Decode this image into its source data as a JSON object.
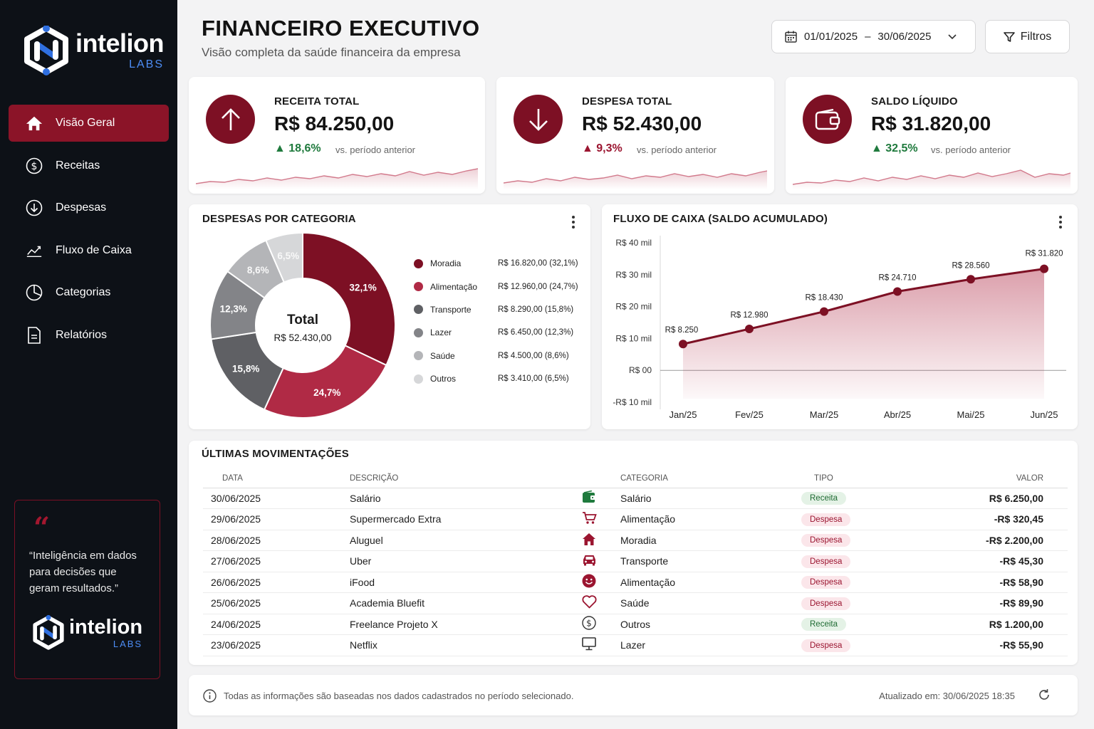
{
  "brand": {
    "name": "intelion",
    "sub": "LABS"
  },
  "sidebar": {
    "items": [
      {
        "label": "Visão Geral",
        "icon": "home-icon",
        "active": true
      },
      {
        "label": "Receitas",
        "icon": "dollar-circle-icon"
      },
      {
        "label": "Despesas",
        "icon": "arrow-down-circle-icon"
      },
      {
        "label": "Fluxo de Caixa",
        "icon": "trend-line-icon"
      },
      {
        "label": "Categorias",
        "icon": "pie-chart-icon"
      },
      {
        "label": "Relatórios",
        "icon": "document-icon"
      }
    ],
    "quote": "“Inteligência em dados para decisões que geram resultados.”"
  },
  "header": {
    "title": "FINANCEIRO EXECUTIVO",
    "subtitle": "Visão completa da saúde financeira da empresa",
    "date_start": "01/01/2025",
    "date_sep": "–",
    "date_end": "30/06/2025",
    "filter_label": "Filtros"
  },
  "kpis": [
    {
      "label": "RECEITA TOTAL",
      "value": "R$ 84.250,00",
      "delta": "▲ 18,6%",
      "trend": "up",
      "compare": "vs. período anterior",
      "icon": "arrow-up-icon"
    },
    {
      "label": "DESPESA TOTAL",
      "value": "R$ 52.430,00",
      "delta": "▲ 9,3%",
      "trend": "down",
      "compare": "vs. período anterior",
      "icon": "arrow-down-icon"
    },
    {
      "label": "SALDO LÍQUIDO",
      "value": "R$ 31.820,00",
      "delta": "▲ 32,5%",
      "trend": "up",
      "compare": "vs. período anterior",
      "icon": "wallet-icon"
    }
  ],
  "expenses": {
    "title": "DESPESAS POR CATEGORIA",
    "center_title": "Total",
    "center_value": "R$ 52.430,00"
  },
  "cashflow": {
    "title": "FLUXO DE CAIXA (SALDO ACUMULADO)"
  },
  "chart_data": [
    {
      "type": "pie",
      "title": "DESPESAS POR CATEGORIA",
      "categories": [
        "Moradia",
        "Alimentação",
        "Transporte",
        "Lazer",
        "Saúde",
        "Outros"
      ],
      "values": [
        16820,
        12960,
        8290,
        6450,
        4500,
        3410
      ],
      "percent_labels": [
        "32,1%",
        "24,7%",
        "15,8%",
        "12,3%",
        "8,6%",
        "6,5%"
      ],
      "legend_values": [
        "R$ 16.820,00 (32,1%)",
        "R$ 12.960,00 (24,7%)",
        "R$ 8.290,00 (15,8%)",
        "R$ 6.450,00 (12,3%)",
        "R$ 4.500,00 (8,6%)",
        "R$ 3.410,00 (6,5%)"
      ],
      "colors": [
        "#7d1024",
        "#b02a45",
        "#5f6064",
        "#838488",
        "#b4b5b8",
        "#d6d7d9"
      ],
      "legend": "right"
    },
    {
      "type": "area",
      "title": "FLUXO DE CAIXA (SALDO ACUMULADO)",
      "categories": [
        "Jan/25",
        "Fev/25",
        "Mar/25",
        "Abr/25",
        "Mai/25",
        "Jun/25"
      ],
      "values": [
        8250,
        12980,
        18430,
        24710,
        28560,
        31820
      ],
      "point_labels": [
        "R$ 8.250",
        "R$ 12.980",
        "R$ 18.430",
        "R$ 24.710",
        "R$ 28.560",
        "R$ 31.820"
      ],
      "y_ticks": [
        40000,
        30000,
        20000,
        10000,
        0,
        -10000
      ],
      "y_tick_labels": [
        "R$ 40 mil",
        "R$ 30 mil",
        "R$ 20 mil",
        "R$ 10 mil",
        "R$ 00",
        "-R$ 10 mil"
      ],
      "ylim": [
        -10000,
        40000
      ],
      "color": "#7d1024"
    }
  ],
  "transactions": {
    "title": "ÚLTIMAS MOVIMENTAÇÕES",
    "headers": {
      "date": "DATA",
      "desc": "DESCRIÇÃO",
      "cat": "CATEGORIA",
      "type": "TIPO",
      "value": "VALOR"
    },
    "rows": [
      {
        "date": "30/06/2025",
        "desc": "Salário",
        "icon": "wallet-icon",
        "category": "Salário",
        "type": "Receita",
        "value": "R$ 6.250,00",
        "positive": true
      },
      {
        "date": "29/06/2025",
        "desc": "Supermercado Extra",
        "icon": "cart-icon",
        "category": "Alimentação",
        "type": "Despesa",
        "value": "-R$ 320,45",
        "positive": false
      },
      {
        "date": "28/06/2025",
        "desc": "Aluguel",
        "icon": "house-icon",
        "category": "Moradia",
        "type": "Despesa",
        "value": "-R$ 2.200,00",
        "positive": false
      },
      {
        "date": "27/06/2025",
        "desc": "Uber",
        "icon": "car-icon",
        "category": "Transporte",
        "type": "Despesa",
        "value": "-R$ 45,30",
        "positive": false
      },
      {
        "date": "26/06/2025",
        "desc": "iFood",
        "icon": "smile-icon",
        "category": "Alimentação",
        "type": "Despesa",
        "value": "-R$ 58,90",
        "positive": false
      },
      {
        "date": "25/06/2025",
        "desc": "Academia Bluefit",
        "icon": "heart-icon",
        "category": "Saúde",
        "type": "Despesa",
        "value": "-R$ 89,90",
        "positive": false
      },
      {
        "date": "24/06/2025",
        "desc": "Freelance Projeto X",
        "icon": "dollar-circle-icon",
        "category": "Outros",
        "type": "Receita",
        "value": "R$ 1.200,00",
        "positive": true
      },
      {
        "date": "23/06/2025",
        "desc": "Netflix",
        "icon": "monitor-icon",
        "category": "Lazer",
        "type": "Despesa",
        "value": "-R$ 55,90",
        "positive": false
      }
    ]
  },
  "footer": {
    "note": "Todas as informações são baseadas nos dados cadastrados no período selecionado.",
    "updated_label": "Atualizado em:",
    "updated_value": "30/06/2025 18:35"
  },
  "colors": {
    "accent": "#7d1024",
    "sidebar_bg": "#0d1117",
    "positive": "#1f7a3d",
    "negative": "#9b1530"
  }
}
